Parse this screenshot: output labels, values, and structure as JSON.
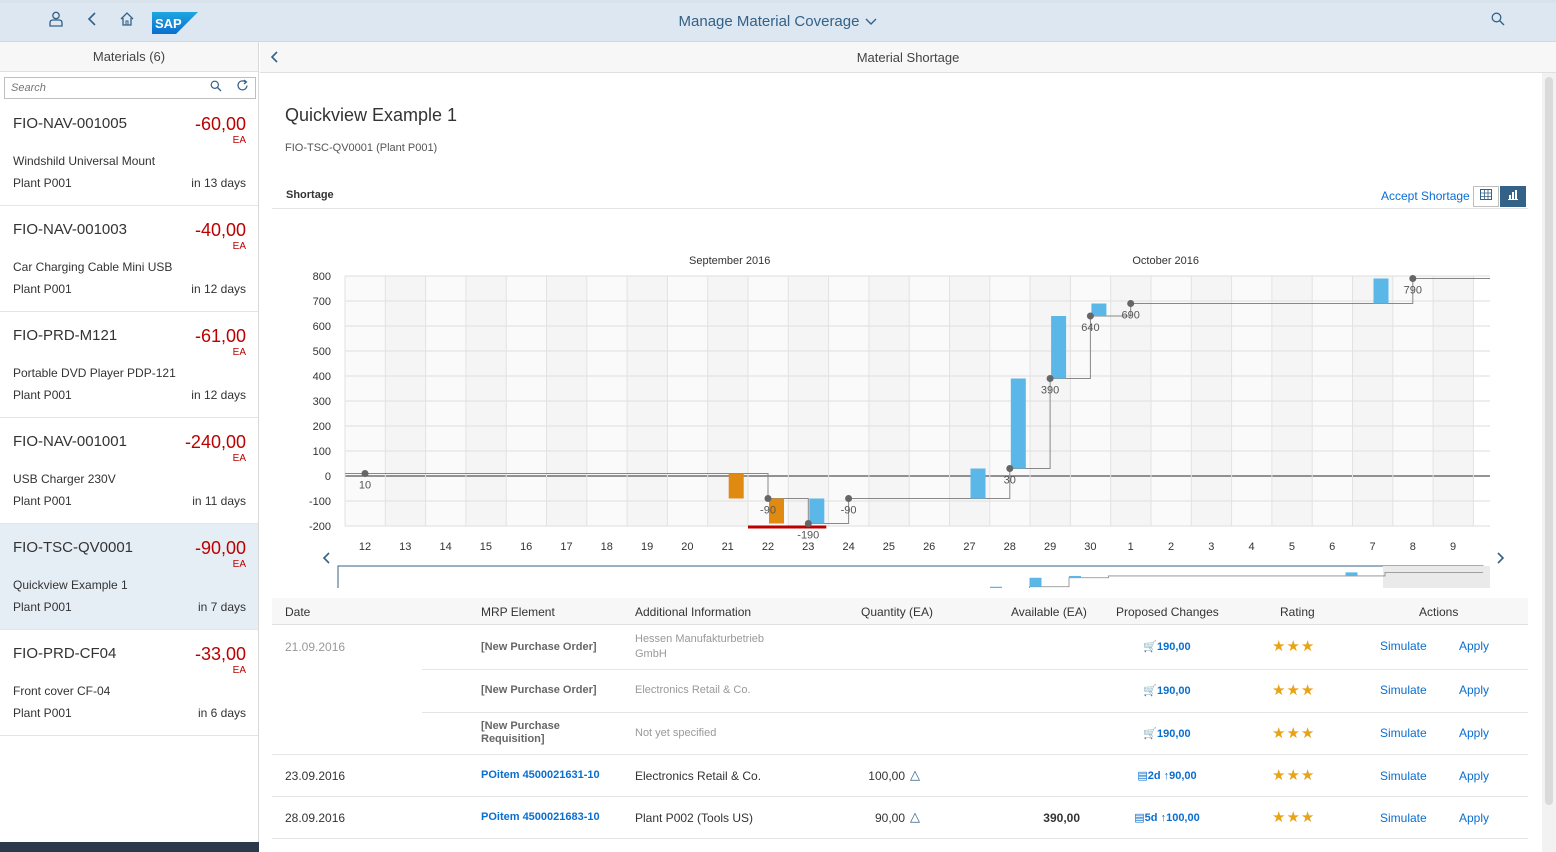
{
  "shell": {
    "title": "Manage Material Coverage",
    "logo_text": "SAP"
  },
  "master": {
    "title": "Materials (6)",
    "search_placeholder": "Search",
    "items": [
      {
        "id": "FIO-NAV-001005",
        "value": "-60,00",
        "unit": "EA",
        "desc": "Windshild Universal Mount",
        "plant": "Plant P001",
        "days": "in 13 days"
      },
      {
        "id": "FIO-NAV-001003",
        "value": "-40,00",
        "unit": "EA",
        "desc": "Car Charging Cable Mini USB",
        "plant": "Plant P001",
        "days": "in 12 days"
      },
      {
        "id": "FIO-PRD-M121",
        "value": "-61,00",
        "unit": "EA",
        "desc": "Portable DVD Player PDP-121",
        "plant": "Plant P001",
        "days": "in 12 days"
      },
      {
        "id": "FIO-NAV-001001",
        "value": "-240,00",
        "unit": "EA",
        "desc": "USB Charger 230V",
        "plant": "Plant P001",
        "days": "in 11 days"
      },
      {
        "id": "FIO-TSC-QV0001",
        "value": "-90,00",
        "unit": "EA",
        "desc": "Quickview Example 1",
        "plant": "Plant P001",
        "days": "in 7 days"
      },
      {
        "id": "FIO-PRD-CF04",
        "value": "-33,00",
        "unit": "EA",
        "desc": "Front cover CF-04",
        "plant": "Plant P001",
        "days": "in 6 days"
      }
    ]
  },
  "detail": {
    "header": "Material Shortage",
    "title": "Quickview Example 1",
    "subtitle": "FIO-TSC-QV0001 (Plant P001)",
    "section": "Shortage",
    "accept": "Accept Shortage"
  },
  "chart_data": {
    "type": "bar",
    "months": [
      {
        "label": "September 2016"
      },
      {
        "label": "October 2016"
      }
    ],
    "days": [
      "12",
      "13",
      "14",
      "15",
      "16",
      "17",
      "18",
      "19",
      "20",
      "21",
      "22",
      "23",
      "24",
      "25",
      "26",
      "27",
      "28",
      "29",
      "30",
      "1",
      "2",
      "3",
      "4",
      "5",
      "6",
      "7",
      "8",
      "9"
    ],
    "ylim": [
      -200,
      800
    ],
    "yticks": [
      800,
      700,
      600,
      500,
      400,
      300,
      200,
      100,
      0,
      -100,
      -200
    ],
    "steps": [
      {
        "dayIndex": 9,
        "from": 10,
        "to": -90,
        "color": "#e08a12"
      },
      {
        "dayIndex": 10,
        "from": -90,
        "to": -190,
        "color": "#e08a12"
      },
      {
        "dayIndex": 11,
        "from": -190,
        "to": -90,
        "color": "#5bb7e8"
      },
      {
        "dayIndex": 15,
        "from": -90,
        "to": 30,
        "color": "#5bb7e8"
      },
      {
        "dayIndex": 16,
        "from": 30,
        "to": 390,
        "color": "#5bb7e8"
      },
      {
        "dayIndex": 17,
        "from": 390,
        "to": 640,
        "color": "#5bb7e8"
      },
      {
        "dayIndex": 18,
        "from": 640,
        "to": 690,
        "color": "#5bb7e8"
      },
      {
        "dayIndex": 25,
        "from": 690,
        "to": 790,
        "color": "#5bb7e8"
      }
    ],
    "points": [
      {
        "day": 0,
        "value": 10,
        "label": "10"
      },
      {
        "day": 10,
        "value": -90,
        "label": "-90"
      },
      {
        "day": 11,
        "value": -190,
        "label": "-190"
      },
      {
        "day": 12,
        "value": -90,
        "label": "-90"
      },
      {
        "day": 16,
        "value": 30,
        "label": "30"
      },
      {
        "day": 17,
        "value": 390,
        "label": "390"
      },
      {
        "day": 18,
        "value": 640,
        "label": "640"
      },
      {
        "day": 19,
        "value": 690,
        "label": "690"
      },
      {
        "day": 26,
        "value": 790,
        "label": "790"
      }
    ],
    "shortage_range": [
      10,
      11
    ],
    "colors": {
      "supply": "#5bb7e8",
      "demand": "#e08a12",
      "shortage": "#bb0000"
    }
  },
  "table": {
    "headers": {
      "date": "Date",
      "mrp": "MRP Element",
      "info": "Additional Information",
      "qty": "Quantity (EA)",
      "avail": "Available (EA)",
      "prop": "Proposed Changes",
      "rating": "Rating",
      "actions": "Actions"
    },
    "rows": [
      {
        "date": "21.09.2016",
        "mrp": "[New Purchase Order]",
        "info": "Hessen Manufakturbetrieb GmbH",
        "qty": "",
        "avail": "",
        "prop": "190,00",
        "rating": "★★★",
        "sim": "Simulate",
        "apply": "Apply"
      },
      {
        "date": "",
        "mrp": "[New Purchase Order]",
        "info": "Electronics Retail & Co.",
        "qty": "",
        "avail": "",
        "prop": "190,00",
        "rating": "★★★",
        "sim": "Simulate",
        "apply": "Apply"
      },
      {
        "date": "",
        "mrp": "[New Purchase Requisition]",
        "info": "Not yet specified",
        "qty": "",
        "avail": "",
        "prop": "190,00",
        "rating": "★★★",
        "sim": "Simulate",
        "apply": "Apply"
      },
      {
        "date": "23.09.2016",
        "mrp": "POitem 4500021631-10",
        "info": "Electronics Retail & Co.",
        "qty": "100,00",
        "avail": "",
        "prop_a": "2d",
        "prop_b": "90,00",
        "rating": "★★★",
        "sim": "Simulate",
        "apply": "Apply"
      },
      {
        "date": "28.09.2016",
        "mrp": "POitem 4500021683-10",
        "info": "Plant P002 (Tools US)",
        "qty": "90,00",
        "avail": "390,00",
        "prop_a": "5d",
        "prop_b": "100,00",
        "rating": "★★★",
        "sim": "Simulate",
        "apply": "Apply"
      }
    ]
  }
}
